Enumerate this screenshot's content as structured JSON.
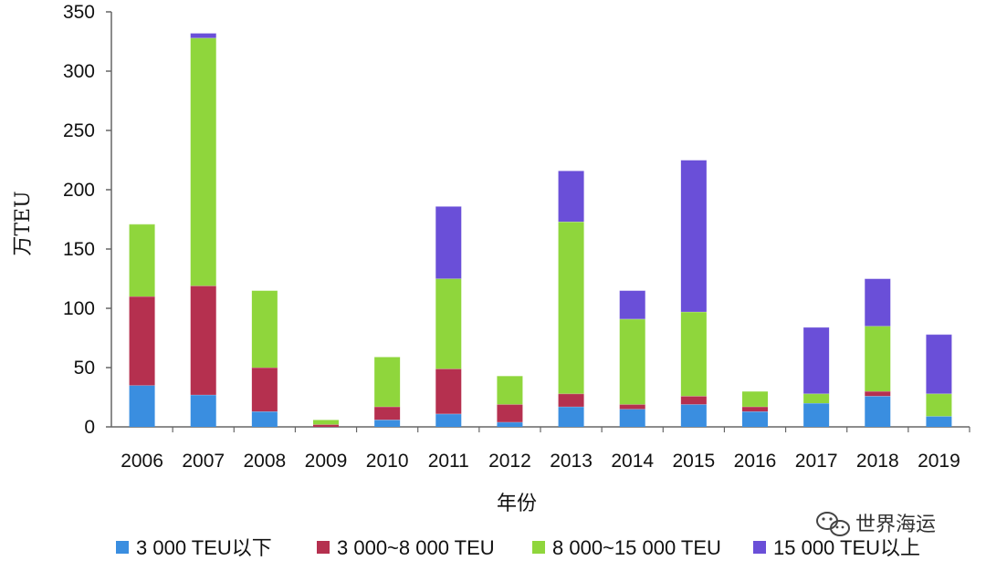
{
  "chart_data": {
    "type": "bar",
    "stacked": true,
    "categories": [
      "2006",
      "2007",
      "2008",
      "2009",
      "2010",
      "2011",
      "2012",
      "2013",
      "2014",
      "2015",
      "2016",
      "2017",
      "2018",
      "2019"
    ],
    "series": [
      {
        "name": "3 000 TEU以下",
        "color": "#3a8ee0",
        "values": [
          35,
          27,
          13,
          0,
          6,
          11,
          4,
          17,
          15,
          19,
          13,
          20,
          26,
          9
        ]
      },
      {
        "name": "3 000~8 000 TEU",
        "color": "#b5304f",
        "values": [
          75,
          92,
          37,
          2,
          11,
          38,
          15,
          11,
          4,
          7,
          4,
          0,
          4,
          0
        ]
      },
      {
        "name": "8 000~15 000 TEU",
        "color": "#8fd63c",
        "values": [
          61,
          209,
          65,
          4,
          42,
          76,
          24,
          145,
          72,
          71,
          13,
          8,
          55,
          19
        ]
      },
      {
        "name": "15 000 TEU以上",
        "color": "#6a4fd8",
        "values": [
          0,
          4,
          0,
          0,
          0,
          61,
          0,
          43,
          24,
          128,
          0,
          56,
          40,
          50
        ]
      }
    ],
    "ylabel": "万TEU",
    "xlabel": "年份",
    "ylim": [
      0,
      350
    ],
    "yticks": [
      0,
      50,
      100,
      150,
      200,
      250,
      300,
      350
    ],
    "legend": "bottom",
    "grid": false
  },
  "watermark": "世界海运"
}
